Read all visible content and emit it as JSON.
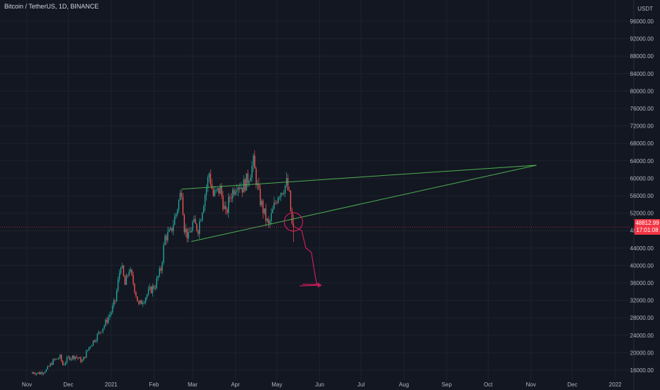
{
  "header": {
    "symbol": "Bitcoin / TetherUS, 1D, BINANCE",
    "currency": "USDT"
  },
  "price_badge": {
    "price": "48812.99",
    "countdown": "17:01:08"
  },
  "colors": {
    "background": "#131722",
    "up": "#26a69a",
    "down": "#ef5350",
    "trendline": "#4caf50",
    "drawing": "#e91e63",
    "price_line": "#f23645"
  },
  "chart_data": {
    "type": "candlestick",
    "ylim": [
      14000,
      98000
    ],
    "y_ticks": [
      16000,
      20000,
      24000,
      28000,
      32000,
      36000,
      40000,
      44000,
      48000,
      52000,
      56000,
      60000,
      64000,
      68000,
      72000,
      76000,
      80000,
      84000,
      88000,
      92000,
      96000
    ],
    "y_tick_labels": [
      "16000.00",
      "20000.00",
      "24000.00",
      "28000.00",
      "32000.00",
      "36000.00",
      "40000.00",
      "44000.00",
      "48000.00",
      "52000.00",
      "56000.00",
      "60000.00",
      "64000.00",
      "68000.00",
      "72000.00",
      "76000.00",
      "80000.00",
      "84000.00",
      "88000.00",
      "92000.00",
      "96000.00"
    ],
    "x_labels": [
      {
        "label": "Nov",
        "date": "2020-11-01"
      },
      {
        "label": "Dec",
        "date": "2020-12-01"
      },
      {
        "label": "2021",
        "date": "2021-01-01"
      },
      {
        "label": "Feb",
        "date": "2021-02-01"
      },
      {
        "label": "Mar",
        "date": "2021-03-01"
      },
      {
        "label": "Apr",
        "date": "2021-04-01"
      },
      {
        "label": "May",
        "date": "2021-05-01"
      },
      {
        "label": "Jun",
        "date": "2021-06-01"
      },
      {
        "label": "Jul",
        "date": "2021-07-01"
      },
      {
        "label": "Aug",
        "date": "2021-08-01"
      },
      {
        "label": "Sep",
        "date": "2021-09-01"
      },
      {
        "label": "Oct",
        "date": "2021-10-01"
      },
      {
        "label": "Nov",
        "date": "2021-11-01"
      },
      {
        "label": "Dec",
        "date": "2021-12-01"
      },
      {
        "label": "2022",
        "date": "2022-01-01"
      }
    ],
    "last_price": 48812.99,
    "series": [
      {
        "date": "2020-11-05",
        "close": 15500
      },
      {
        "date": "2020-11-10",
        "close": 15300
      },
      {
        "date": "2020-11-15",
        "close": 16000
      },
      {
        "date": "2020-11-20",
        "close": 18100
      },
      {
        "date": "2020-11-25",
        "close": 19000
      },
      {
        "date": "2020-11-27",
        "close": 17200
      },
      {
        "date": "2020-12-01",
        "close": 18800
      },
      {
        "date": "2020-12-06",
        "close": 19200
      },
      {
        "date": "2020-12-11",
        "close": 18000
      },
      {
        "date": "2020-12-16",
        "close": 21300
      },
      {
        "date": "2020-12-21",
        "close": 23500
      },
      {
        "date": "2020-12-27",
        "close": 26300
      },
      {
        "date": "2021-01-01",
        "close": 29400
      },
      {
        "date": "2021-01-04",
        "close": 32000
      },
      {
        "date": "2021-01-08",
        "close": 40500
      },
      {
        "date": "2021-01-11",
        "close": 35500
      },
      {
        "date": "2021-01-14",
        "close": 39200
      },
      {
        "date": "2021-01-17",
        "close": 36000
      },
      {
        "date": "2021-01-21",
        "close": 30800
      },
      {
        "date": "2021-01-25",
        "close": 32500
      },
      {
        "date": "2021-01-29",
        "close": 34200
      },
      {
        "date": "2021-02-02",
        "close": 35500
      },
      {
        "date": "2021-02-06",
        "close": 39200
      },
      {
        "date": "2021-02-09",
        "close": 46500
      },
      {
        "date": "2021-02-13",
        "close": 47500
      },
      {
        "date": "2021-02-17",
        "close": 52000
      },
      {
        "date": "2021-02-21",
        "close": 57500
      },
      {
        "date": "2021-02-23",
        "close": 48800
      },
      {
        "date": "2021-02-26",
        "close": 46300
      },
      {
        "date": "2021-03-01",
        "close": 49600
      },
      {
        "date": "2021-03-05",
        "close": 48500
      },
      {
        "date": "2021-03-09",
        "close": 54800
      },
      {
        "date": "2021-03-13",
        "close": 61200
      },
      {
        "date": "2021-03-16",
        "close": 56000
      },
      {
        "date": "2021-03-21",
        "close": 57500
      },
      {
        "date": "2021-03-25",
        "close": 51500
      },
      {
        "date": "2021-03-28",
        "close": 55800
      },
      {
        "date": "2021-04-02",
        "close": 59000
      },
      {
        "date": "2021-04-06",
        "close": 58000
      },
      {
        "date": "2021-04-10",
        "close": 59800
      },
      {
        "date": "2021-04-14",
        "close": 63500
      },
      {
        "date": "2021-04-18",
        "close": 56000
      },
      {
        "date": "2021-04-22",
        "close": 51700
      },
      {
        "date": "2021-04-25",
        "close": 49000
      },
      {
        "date": "2021-04-29",
        "close": 53500
      },
      {
        "date": "2021-05-02",
        "close": 56500
      },
      {
        "date": "2021-05-05",
        "close": 57500
      },
      {
        "date": "2021-05-08",
        "close": 58800
      },
      {
        "date": "2021-05-10",
        "close": 55800
      },
      {
        "date": "2021-05-12",
        "close": 49200
      },
      {
        "date": "2021-05-13",
        "close": 48812.99
      }
    ],
    "trendlines": [
      {
        "from": {
          "date": "2021-02-21",
          "price": 57500
        },
        "to": {
          "date": "2021-11-05",
          "price": 63000
        }
      },
      {
        "from": {
          "date": "2021-02-28",
          "price": 45500
        },
        "to": {
          "date": "2021-11-05",
          "price": 63000
        }
      }
    ],
    "projection": [
      {
        "date": "2021-05-13",
        "price": 49000
      },
      {
        "date": "2021-05-19",
        "price": 48000
      },
      {
        "date": "2021-05-22",
        "price": 44000
      },
      {
        "date": "2021-05-26",
        "price": 43000
      },
      {
        "date": "2021-05-28",
        "price": 39000
      },
      {
        "date": "2021-05-30",
        "price": 35500
      },
      {
        "date": "2021-06-02",
        "price": 35500
      }
    ],
    "circle_marker": {
      "date": "2021-05-13",
      "price": 50000
    }
  }
}
